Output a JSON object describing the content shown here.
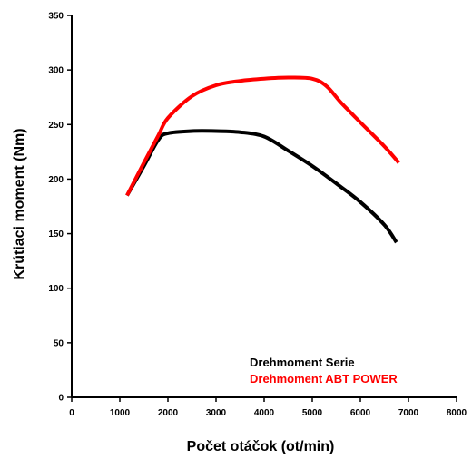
{
  "chart_data": {
    "type": "line",
    "title": "",
    "xlabel": "Počet otáčok (ot/min)",
    "ylabel": "Krútiaci moment (Nm)",
    "xlim": [
      0,
      8000
    ],
    "ylim": [
      0,
      350
    ],
    "xticks": [
      "0",
      "1000",
      "2000",
      "3000",
      "4000",
      "5000",
      "6000",
      "7000",
      "8000"
    ],
    "yticks": [
      "0",
      "50",
      "100",
      "150",
      "200",
      "250",
      "300",
      "350"
    ],
    "grid": false,
    "legend_position": "bottom-right",
    "series": [
      {
        "name": "Drehmoment Serie",
        "color": "#000000",
        "x": [
          1150,
          1500,
          1800,
          2000,
          2500,
          3000,
          3500,
          4000,
          4500,
          5000,
          5500,
          6000,
          6500,
          6750
        ],
        "y": [
          185,
          212,
          236,
          242,
          244,
          244,
          243,
          239,
          226,
          212,
          196,
          179,
          158,
          142
        ]
      },
      {
        "name": "Drehmoment ABT POWER",
        "color": "#ff0000",
        "x": [
          1150,
          1500,
          1800,
          2000,
          2500,
          3000,
          3500,
          4000,
          4500,
          5000,
          5300,
          5600,
          6000,
          6500,
          6800
        ],
        "y": [
          185,
          215,
          240,
          256,
          276,
          286,
          290,
          292,
          293,
          292,
          285,
          270,
          252,
          230,
          215
        ]
      }
    ]
  }
}
